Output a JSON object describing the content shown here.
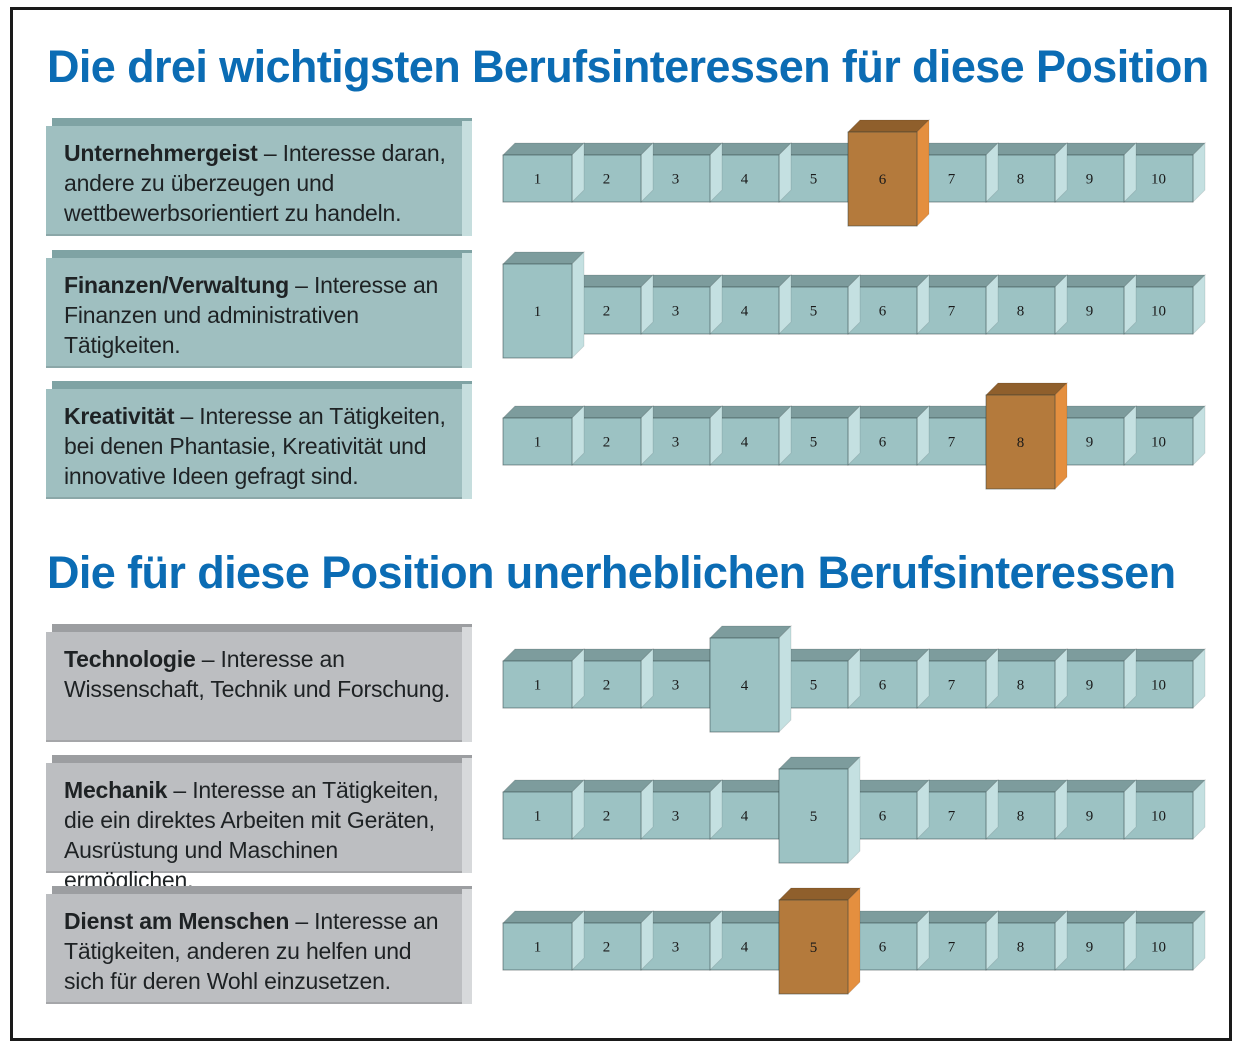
{
  "heading_top": "Die drei wichtigsten Berufsinteressen für diese Position",
  "heading_bottom": "Die für diese Position unerheblichen Berufsinteressen",
  "colors": {
    "title": "#0b6cb4",
    "cube_face": "#9cc2c3",
    "cube_top": "#7d9c9d",
    "cube_side": "#c4e0e1",
    "highlight_face": "#b47a3c",
    "highlight_top": "#8f5f2c",
    "highlight_side": "#e48f3f",
    "selected_light_face": "#9cc2c3"
  },
  "chart_data": {
    "type": "rating-scale",
    "scale_min": 1,
    "scale_max": 10,
    "scale_labels": [
      "1",
      "2",
      "3",
      "4",
      "5",
      "6",
      "7",
      "8",
      "9",
      "10"
    ],
    "groups": [
      {
        "title": "Die drei wichtigsten Berufsinteressen für diese Position",
        "items": [
          {
            "name": "Unternehmergeist",
            "description": "– Interesse daran, andere zu überzeugen und wettbewerbsorientiert zu handeln.",
            "value": 6,
            "highlight": "orange"
          },
          {
            "name": "Finanzen/Verwaltung",
            "description": "– Interesse an Finanzen und administrativen Tätigkeiten.",
            "value": 1,
            "highlight": "teal"
          },
          {
            "name": "Kreativität",
            "description": "– Interesse an Tätigkeiten, bei denen Phantasie, Kreativität und innovative Ideen gefragt sind.",
            "value": 8,
            "highlight": "orange"
          }
        ]
      },
      {
        "title": "Die für diese Position unerheblichen Berufsinteressen",
        "items": [
          {
            "name": "Technologie",
            "description": "– Interesse an Wissenschaft, Technik und Forschung.",
            "value": 4,
            "highlight": "teal"
          },
          {
            "name": "Mechanik",
            "description": "– Interesse an Tätigkeiten, die ein direktes Arbeiten mit Geräten, Ausrüstung und Maschinen ermöglichen.",
            "value": 5,
            "highlight": "teal"
          },
          {
            "name": "Dienst am Menschen",
            "description": "– Interesse an Tätigkeiten, anderen zu helfen und sich für deren Wohl einzusetzen.",
            "value": 5,
            "highlight": "orange"
          }
        ]
      }
    ]
  }
}
